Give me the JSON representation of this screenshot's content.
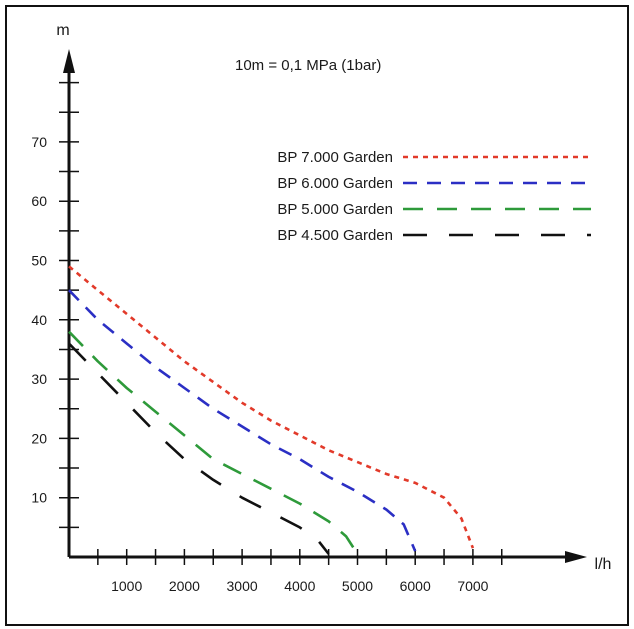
{
  "chart_data": {
    "type": "line",
    "note": "10m = 0,1 MPa (1bar)",
    "xlabel": "l/h",
    "ylabel": "m",
    "xlim": [
      0,
      8000
    ],
    "ylim": [
      0,
      80
    ],
    "x_ticks": [
      1000,
      2000,
      3000,
      4000,
      5000,
      6000,
      7000
    ],
    "x_tick_labels": [
      "1000",
      "2000",
      "3000",
      "4000",
      "5000",
      "6000",
      "7000"
    ],
    "y_ticks": [
      10,
      20,
      30,
      40,
      50,
      60,
      70
    ],
    "y_tick_labels": [
      "10",
      "20",
      "30",
      "40",
      "50",
      "60",
      "70"
    ],
    "grid": false,
    "legend_position": "top-right",
    "series": [
      {
        "name": "BP 7.000 Garden",
        "color": "#e23a2a",
        "dash": "short",
        "x": [
          0,
          500,
          1000,
          1500,
          2000,
          2500,
          3000,
          3500,
          4000,
          4500,
          5000,
          5500,
          6000,
          6500,
          6800,
          7000
        ],
        "y": [
          49,
          45,
          41,
          37,
          33,
          29.5,
          26,
          23,
          20.5,
          18,
          16,
          14,
          12.5,
          10,
          6.5,
          1.5
        ]
      },
      {
        "name": "BP 6.000 Garden",
        "color": "#2b2fc4",
        "dash": "medium",
        "x": [
          0,
          500,
          1000,
          1500,
          2000,
          2500,
          3000,
          3500,
          4000,
          4500,
          5000,
          5500,
          5800,
          6000
        ],
        "y": [
          45,
          40,
          36,
          32,
          28.5,
          25,
          22,
          19,
          16.5,
          13.5,
          11,
          8,
          5.5,
          1
        ]
      },
      {
        "name": "BP 5.000 Garden",
        "color": "#2e9a3a",
        "dash": "long",
        "x": [
          0,
          500,
          1000,
          1500,
          2000,
          2500,
          3000,
          3500,
          4000,
          4500,
          4800,
          5000
        ],
        "y": [
          38,
          33,
          28.5,
          24.5,
          20.5,
          16.5,
          14,
          11.5,
          9,
          6,
          3.5,
          0.5
        ]
      },
      {
        "name": "BP 4.500 Garden",
        "color": "#111111",
        "dash": "longer",
        "x": [
          0,
          500,
          1000,
          1500,
          2000,
          2500,
          3000,
          3500,
          4000,
          4300,
          4500
        ],
        "y": [
          36,
          31,
          26,
          21,
          16.5,
          13,
          10,
          7.5,
          5,
          3,
          0.5
        ]
      }
    ]
  }
}
